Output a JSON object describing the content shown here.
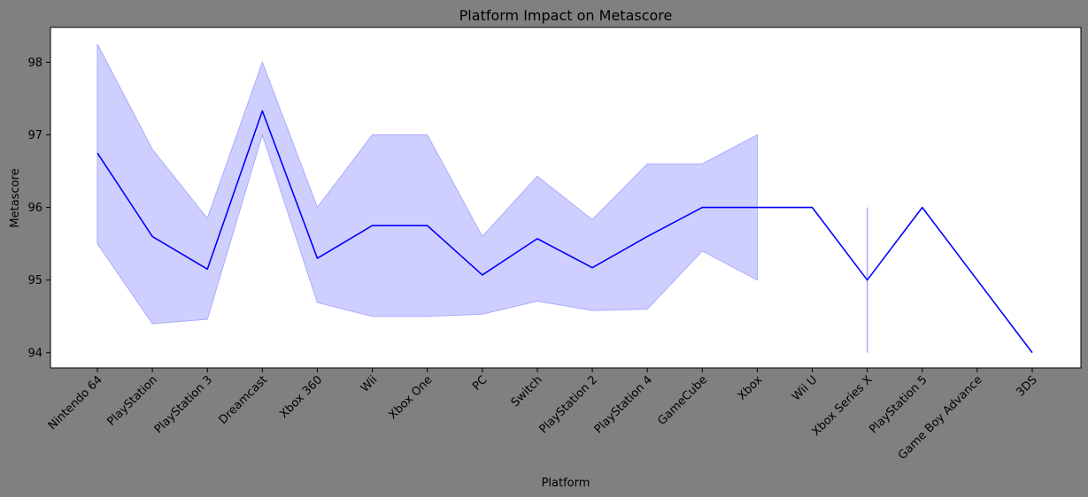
{
  "chart_data": {
    "type": "line",
    "title": "Platform Impact on Metascore",
    "xlabel": "Platform",
    "ylabel": "Metascore",
    "categories": [
      "Nintendo 64",
      "PlayStation",
      "PlayStation 3",
      "Dreamcast",
      "Xbox 360",
      "Wii",
      "Xbox One",
      "PC",
      "Switch",
      "PlayStation 2",
      "PlayStation 4",
      "GameCube",
      "Xbox",
      "Wii U",
      "Xbox Series X",
      "PlayStation 5",
      "Game Boy Advance",
      "3DS"
    ],
    "series": [
      {
        "values": [
          96.75,
          95.6,
          95.15,
          97.33,
          95.3,
          95.75,
          95.75,
          95.07,
          95.57,
          95.17,
          95.6,
          96.0,
          96.0,
          96.0,
          95.0,
          96.0,
          95.0,
          94.0
        ],
        "ci_low": [
          95.5,
          94.4,
          94.46,
          97.0,
          94.69,
          94.5,
          94.5,
          94.53,
          94.71,
          94.58,
          94.6,
          95.4,
          95.0,
          96.0,
          94.0,
          96.0,
          95.0,
          94.0
        ],
        "ci_high": [
          98.25,
          96.8,
          95.85,
          98.0,
          96.0,
          97.0,
          97.0,
          95.6,
          96.43,
          95.83,
          96.6,
          96.6,
          97.0,
          96.0,
          96.0,
          96.0,
          95.0,
          94.0
        ]
      }
    ],
    "yticks": [
      94,
      95,
      96,
      97,
      98
    ],
    "ylim": [
      93.79,
      98.48
    ],
    "grid": false,
    "colors": {
      "line": "#0000ff",
      "band": "#ccccff",
      "band_edge": "#aaaaff",
      "figure_bg": "#808080",
      "plot_bg": "#ffffff"
    }
  }
}
